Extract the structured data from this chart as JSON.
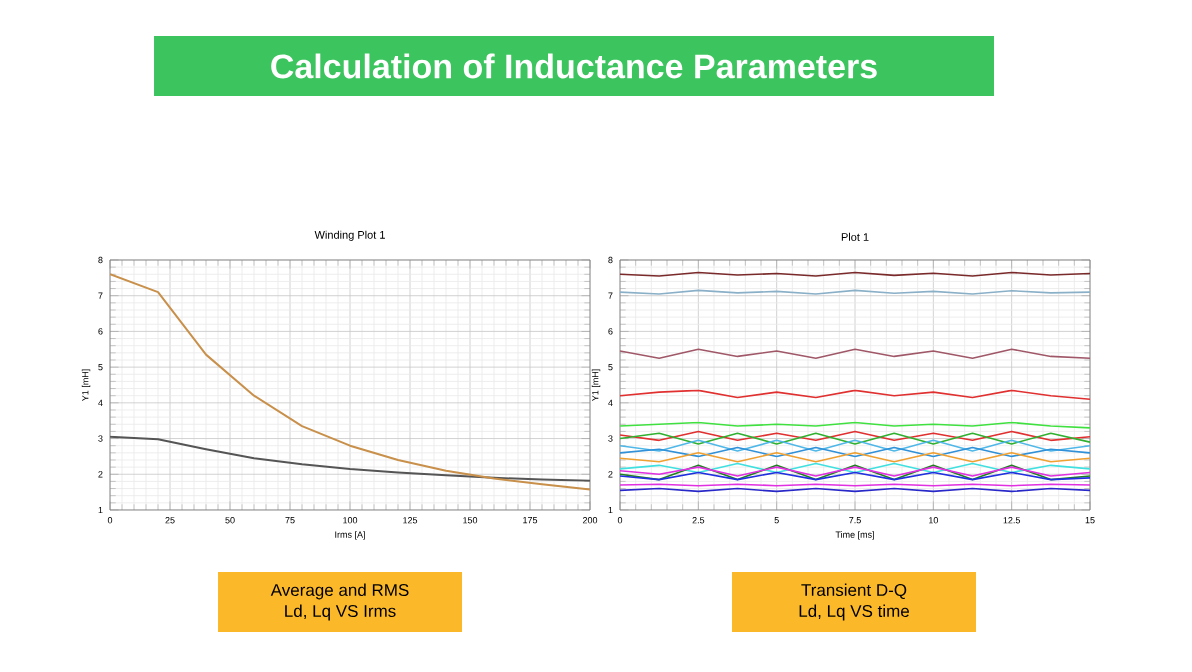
{
  "chart_data": [
    {
      "type": "line",
      "title": "Winding Plot 1",
      "xlabel": "Irms [A]",
      "ylabel": "Y1 [mH]",
      "annotations": [
        "Calculation of Inductance Parameters",
        "Average and RMS",
        "Ld, Lq VS Irms"
      ],
      "x": [
        0,
        20,
        40,
        60,
        80,
        100,
        120,
        140,
        160,
        180,
        200
      ],
      "series": [
        {
          "color": "#555555",
          "values": [
            3.05,
            2.98,
            2.7,
            2.45,
            2.28,
            2.15,
            2.05,
            1.97,
            1.9,
            1.85,
            1.82
          ]
        },
        {
          "color": "#c8904a",
          "values": [
            7.6,
            7.1,
            5.35,
            4.2,
            3.35,
            2.8,
            2.4,
            2.1,
            1.88,
            1.72,
            1.57
          ]
        }
      ],
      "xlim": [
        0,
        200
      ],
      "ylim": [
        1,
        8
      ],
      "xticks": [
        0,
        25,
        50,
        75,
        100,
        125,
        150,
        175,
        200
      ],
      "yticks": [
        1,
        2,
        3,
        4,
        5,
        6,
        7,
        8
      ],
      "grid": true,
      "marker": "none",
      "line_style": "solid"
    },
    {
      "type": "line",
      "title": "Plot 1",
      "xlabel": "Time [ms]",
      "ylabel": "Y1 [mH]",
      "annotations": [
        "Transient D-Q",
        "Ld, Lq VS time"
      ],
      "x": [
        0,
        1.25,
        2.5,
        3.75,
        5,
        6.25,
        7.5,
        8.75,
        10,
        11.25,
        12.5,
        13.75,
        15
      ],
      "series": [
        {
          "color": "#7a2a2a",
          "values": [
            7.6,
            7.55,
            7.65,
            7.58,
            7.62,
            7.55,
            7.65,
            7.57,
            7.63,
            7.55,
            7.65,
            7.58,
            7.62
          ]
        },
        {
          "color": "#8ab0c8",
          "values": [
            7.1,
            7.05,
            7.15,
            7.08,
            7.12,
            7.05,
            7.15,
            7.07,
            7.12,
            7.05,
            7.14,
            7.08,
            7.1
          ]
        },
        {
          "color": "#a05868",
          "values": [
            5.45,
            5.25,
            5.5,
            5.3,
            5.45,
            5.25,
            5.5,
            5.3,
            5.45,
            5.25,
            5.5,
            5.3,
            5.25
          ]
        },
        {
          "color": "#e03030",
          "values": [
            4.2,
            4.3,
            4.35,
            4.15,
            4.3,
            4.15,
            4.35,
            4.2,
            4.3,
            4.15,
            4.35,
            4.2,
            4.1
          ]
        },
        {
          "color": "#40e040",
          "values": [
            3.35,
            3.4,
            3.45,
            3.35,
            3.4,
            3.35,
            3.45,
            3.35,
            3.4,
            3.35,
            3.45,
            3.35,
            3.3
          ]
        },
        {
          "color": "#e03030",
          "values": [
            3.1,
            2.95,
            3.2,
            2.95,
            3.15,
            2.95,
            3.2,
            2.95,
            3.15,
            2.95,
            3.2,
            2.95,
            3.05
          ]
        },
        {
          "color": "#30b030",
          "values": [
            3.0,
            3.15,
            2.85,
            3.15,
            2.85,
            3.15,
            2.85,
            3.15,
            2.85,
            3.15,
            2.85,
            3.15,
            2.9
          ]
        },
        {
          "color": "#50b8e8",
          "values": [
            2.8,
            2.65,
            2.95,
            2.65,
            2.95,
            2.65,
            2.95,
            2.65,
            2.95,
            2.65,
            2.95,
            2.65,
            2.8
          ]
        },
        {
          "color": "#3090d8",
          "values": [
            2.6,
            2.7,
            2.5,
            2.75,
            2.5,
            2.75,
            2.5,
            2.75,
            2.5,
            2.75,
            2.5,
            2.7,
            2.6
          ]
        },
        {
          "color": "#f0a030",
          "values": [
            2.45,
            2.35,
            2.6,
            2.35,
            2.6,
            2.35,
            2.6,
            2.35,
            2.6,
            2.35,
            2.6,
            2.35,
            2.45
          ]
        },
        {
          "color": "#40e0e0",
          "values": [
            2.15,
            2.25,
            2.05,
            2.3,
            2.05,
            2.3,
            2.05,
            2.3,
            2.05,
            2.3,
            2.05,
            2.25,
            2.15
          ]
        },
        {
          "color": "#208020",
          "values": [
            2.0,
            1.85,
            2.25,
            1.85,
            2.25,
            1.85,
            2.25,
            1.85,
            2.25,
            1.85,
            2.25,
            1.85,
            1.95
          ]
        },
        {
          "color": "#e030e0",
          "values": [
            2.1,
            2.0,
            2.2,
            1.95,
            2.2,
            1.95,
            2.2,
            1.95,
            2.2,
            1.95,
            2.2,
            1.95,
            2.05
          ]
        },
        {
          "color": "#2030e0",
          "values": [
            1.95,
            1.85,
            2.05,
            1.85,
            2.05,
            1.85,
            2.05,
            1.85,
            2.05,
            1.85,
            2.05,
            1.85,
            1.9
          ]
        },
        {
          "color": "#e030e0",
          "values": [
            1.7,
            1.72,
            1.68,
            1.72,
            1.68,
            1.72,
            1.68,
            1.72,
            1.68,
            1.72,
            1.68,
            1.72,
            1.7
          ]
        },
        {
          "color": "#2828c8",
          "values": [
            1.55,
            1.6,
            1.52,
            1.6,
            1.52,
            1.6,
            1.52,
            1.6,
            1.52,
            1.6,
            1.52,
            1.6,
            1.55
          ]
        }
      ],
      "xlim": [
        0,
        15
      ],
      "ylim": [
        1,
        8
      ],
      "xticks": [
        0,
        2.5,
        5,
        7.5,
        10,
        12.5,
        15
      ],
      "yticks": [
        1,
        2,
        3,
        4,
        5,
        6,
        7,
        8
      ],
      "grid": true,
      "marker": "none",
      "line_style": "solid"
    }
  ]
}
